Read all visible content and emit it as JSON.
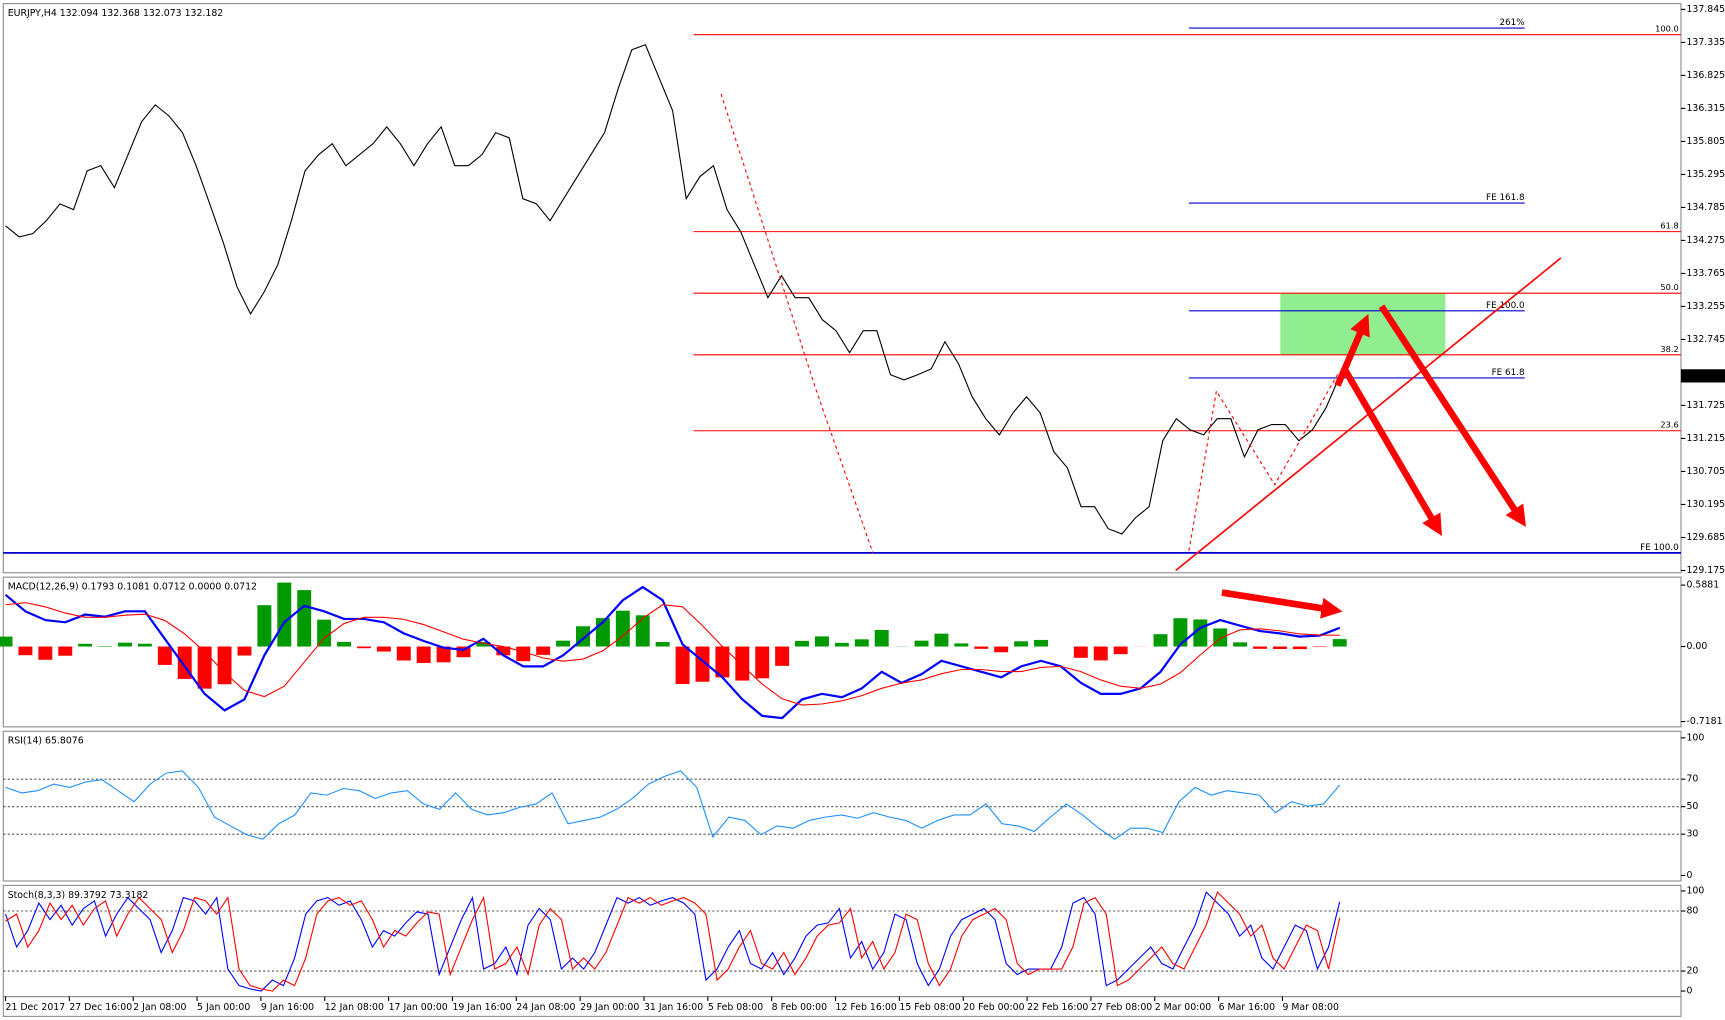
{
  "chart_data": [
    {
      "type": "line",
      "title": "EURJPY,H4  132.094 132.368 132.073 132.182",
      "color": "#000000",
      "values": [
        134.5,
        134.33,
        134.38,
        134.58,
        134.84,
        134.75,
        135.35,
        135.43,
        135.09,
        135.6,
        136.11,
        136.37,
        136.2,
        135.94,
        135.43,
        134.84,
        134.24,
        133.56,
        133.14,
        133.48,
        133.9,
        134.58,
        135.35,
        135.6,
        135.77,
        135.43,
        135.6,
        135.77,
        136.03,
        135.77,
        135.43,
        135.77,
        136.03,
        135.43,
        135.43,
        135.6,
        135.94,
        135.86,
        134.92,
        134.84,
        134.58,
        134.92,
        135.26,
        135.6,
        135.94,
        136.62,
        137.22,
        137.3,
        136.79,
        136.28,
        134.92,
        135.26,
        135.43,
        134.75,
        134.41,
        133.9,
        133.39,
        133.73,
        133.39,
        133.39,
        133.05,
        132.88,
        132.54,
        132.88,
        132.88,
        132.2,
        132.12,
        132.2,
        132.29,
        132.71,
        132.37,
        131.86,
        131.52,
        131.27,
        131.61,
        131.86,
        131.61,
        131.01,
        130.76,
        130.16,
        130.16,
        129.82,
        129.74,
        129.99,
        130.16,
        131.18,
        131.52,
        131.35,
        131.27,
        131.52,
        131.52,
        130.93,
        131.35,
        131.43,
        131.43,
        131.18,
        131.35,
        131.69,
        132.182
      ],
      "ylim": [
        129.14,
        137.9
      ],
      "yticks": [
        137.845,
        137.335,
        136.825,
        136.315,
        135.805,
        135.295,
        134.785,
        134.275,
        133.765,
        133.255,
        132.745,
        131.725,
        131.215,
        130.705,
        130.195,
        129.685,
        129.175
      ],
      "last_price": 132.182,
      "retracement_levels": [
        {
          "label": "100.0",
          "value": 137.454
        },
        {
          "label": "61.8",
          "value": 134.411
        },
        {
          "label": "50.0",
          "value": 133.459
        },
        {
          "label": "38.2",
          "value": 132.507
        },
        {
          "label": "23.6",
          "value": 131.334
        }
      ],
      "extension_levels": [
        {
          "label": "261%",
          "value": 137.556
        },
        {
          "label": "FE 161.8",
          "value": 134.853
        },
        {
          "label": "FE 100.0",
          "value": 133.187
        },
        {
          "label": "FE 61.8",
          "value": 132.15
        }
      ],
      "support_line": {
        "label": "FE 100.0",
        "value": 129.447
      },
      "zone": [
        132.507,
        133.459
      ],
      "zone_color": "#90ee90"
    },
    {
      "type": "macd",
      "title": "MACD(12,26,9) 0.1793 0.1081 0.0712 0.0000 0.0712",
      "series": [
        {
          "color": "#0000ff",
          "values": [
            0.495,
            0.337,
            0.253,
            0.232,
            0.306,
            0.285,
            0.337,
            0.337,
            0.074,
            -0.19,
            -0.453,
            -0.611,
            -0.506,
            -0.084,
            0.232,
            0.39,
            0.337,
            0.264,
            0.264,
            0.232,
            0.126,
            0.053,
            -0.011,
            -0.032,
            0.074,
            -0.084,
            -0.19,
            -0.19,
            -0.084,
            0.074,
            0.232,
            0.443,
            0.569,
            0.443,
            0.021,
            -0.137,
            -0.295,
            -0.506,
            -0.664,
            -0.685,
            -0.506,
            -0.453,
            -0.485,
            -0.401,
            -0.242,
            -0.348,
            -0.264,
            -0.137,
            -0.19,
            -0.242,
            -0.295,
            -0.19,
            -0.137,
            -0.19,
            -0.348,
            -0.453,
            -0.453,
            -0.401,
            -0.242,
            0.021,
            0.179,
            0.253,
            0.2,
            0.148,
            0.126,
            0.095,
            0.105,
            0.179
          ]
        },
        {
          "color": "#ff0000",
          "values": [
            0.4,
            0.42,
            0.38,
            0.32,
            0.28,
            0.28,
            0.3,
            0.31,
            0.25,
            0.12,
            -0.05,
            -0.25,
            -0.42,
            -0.48,
            -0.38,
            -0.15,
            0.08,
            0.22,
            0.28,
            0.28,
            0.26,
            0.21,
            0.14,
            0.07,
            0.03,
            0,
            -0.05,
            -0.11,
            -0.14,
            -0.12,
            -0.04,
            0.1,
            0.27,
            0.4,
            0.38,
            0.2,
            0,
            -0.18,
            -0.36,
            -0.5,
            -0.56,
            -0.55,
            -0.52,
            -0.47,
            -0.4,
            -0.35,
            -0.32,
            -0.26,
            -0.22,
            -0.22,
            -0.24,
            -0.24,
            -0.2,
            -0.19,
            -0.24,
            -0.32,
            -0.38,
            -0.4,
            -0.36,
            -0.25,
            -0.08,
            0.08,
            0.16,
            0.17,
            0.15,
            0.12,
            0.11,
            0.108
          ]
        }
      ],
      "histogram": [
        0.095,
        -0.083,
        -0.127,
        -0.088,
        0.026,
        0.005,
        0.037,
        0.027,
        -0.176,
        -0.31,
        -0.403,
        -0.361,
        -0.086,
        0.396,
        0.612,
        0.54,
        0.257,
        0.044,
        -0.016,
        -0.048,
        -0.134,
        -0.157,
        -0.151,
        -0.102,
        0.044,
        -0.084,
        -0.14,
        -0.08,
        0.056,
        0.194,
        0.272,
        0.343,
        0.299,
        0.043,
        -0.359,
        -0.337,
        -0.295,
        -0.326,
        -0.304,
        -0.185,
        0.054,
        0.097,
        0.035,
        0.069,
        0.158,
        0.002,
        0.056,
        0.123,
        0.03,
        -0.022,
        -0.055,
        0.05,
        0.063,
        0,
        -0.108,
        -0.133,
        -0.073,
        -0.001,
        0.118,
        0.271,
        0.259,
        0.173,
        0.04,
        -0.022,
        -0.024,
        -0.025,
        -0.005,
        0.071
      ],
      "up_color": "#009900",
      "down_color": "#ff0000",
      "ylim": [
        -0.769,
        0.643
      ],
      "yticks": [
        0.5881,
        {
          "value": 0,
          "label": "0.00"
        },
        -0.7181
      ]
    },
    {
      "type": "line",
      "title": "RSI(14) 65.8076",
      "series": [
        {
          "color": "#1e90ff",
          "values": [
            64,
            60,
            61.6,
            66.4,
            64,
            68,
            69.6,
            61.6,
            53.6,
            66.4,
            74.4,
            76,
            64,
            42.4,
            36,
            29.6,
            26.4,
            37.6,
            44,
            60,
            58.4,
            63.2,
            61.6,
            56,
            60,
            61.6,
            52,
            48,
            60,
            48,
            44,
            45.6,
            49.6,
            52,
            60,
            37.6,
            40,
            42.4,
            48,
            56,
            66.4,
            72,
            76,
            64,
            28,
            42.4,
            40,
            29.6,
            36,
            34.4,
            40,
            42.4,
            44,
            41.6,
            45.6,
            42.4,
            40,
            34.4,
            40,
            44,
            44,
            52,
            37.6,
            36,
            32,
            42.4,
            52,
            44,
            34.4,
            26.4,
            34.4,
            34.4,
            31.2,
            53.6,
            64,
            58.4,
            61.6,
            60,
            58.4,
            45.6,
            53.6,
            50.4,
            52,
            65.8
          ]
        }
      ],
      "levels": [
        70,
        50,
        30
      ],
      "ylim": [
        -4,
        103.2
      ],
      "yticks": [
        100,
        70,
        50,
        30,
        0
      ]
    },
    {
      "type": "line",
      "title": "Stoch(8,3,3) 89.3792 73.3182",
      "series": [
        {
          "color": "#0000ff",
          "values": [
            76.9,
            44,
            60.4,
            87.9,
            71.4,
            85.7,
            65.9,
            82.4,
            90.1,
            54.9,
            76.9,
            93.4,
            82.4,
            71.4,
            38.5,
            60.4,
            93.4,
            90.1,
            76.9,
            93.4,
            22,
            5.5,
            2.2,
            0,
            11,
            5.5,
            33,
            76.9,
            90.1,
            93.4,
            85.7,
            90.1,
            71.4,
            44,
            60.4,
            54.9,
            68.1,
            79.1,
            76.9,
            16.5,
            44,
            71.4,
            93.4,
            22,
            27.5,
            44,
            16.5,
            65.9,
            82.4,
            71.4,
            22,
            33,
            22,
            38.5,
            65.9,
            93.4,
            87.9,
            93.4,
            85.7,
            90.1,
            93.4,
            87.9,
            76.9,
            11,
            22,
            44,
            60.4,
            27.5,
            22,
            38.5,
            16.5,
            33,
            54.9,
            65.9,
            68.1,
            82.4,
            33,
            49.5,
            22,
            38.5,
            76.9,
            71.4,
            27.5,
            5.5,
            22,
            54.9,
            71.4,
            76.9,
            82.4,
            71.4,
            27.5,
            16.5,
            22,
            22,
            22,
            44,
            87.9,
            93.4,
            76.9,
            5.5,
            11,
            22,
            33,
            44,
            27.5,
            22,
            44,
            65.9,
            98.9,
            87.9,
            76.9,
            54.9,
            65.9,
            33,
            22,
            44,
            65.9,
            60.4,
            22,
            44,
            89.38
          ]
        },
        {
          "color": "#ff0000",
          "values": [
            70,
            76.9,
            44,
            60.4,
            87.9,
            71.4,
            85.7,
            65.9,
            82.4,
            90.1,
            54.9,
            76.9,
            93.4,
            82.4,
            71.4,
            38.5,
            60.4,
            93.4,
            90.1,
            76.9,
            93.4,
            22,
            5.5,
            2.2,
            0,
            11,
            5.5,
            33,
            76.9,
            90.1,
            93.4,
            85.7,
            90.1,
            71.4,
            44,
            60.4,
            54.9,
            68.1,
            79.1,
            76.9,
            16.5,
            44,
            71.4,
            93.4,
            22,
            27.5,
            44,
            16.5,
            65.9,
            82.4,
            71.4,
            22,
            33,
            22,
            38.5,
            65.9,
            93.4,
            87.9,
            93.4,
            85.7,
            90.1,
            93.4,
            87.9,
            76.9,
            11,
            22,
            44,
            60.4,
            27.5,
            22,
            38.5,
            16.5,
            33,
            54.9,
            65.9,
            68.1,
            82.4,
            33,
            49.5,
            22,
            38.5,
            76.9,
            71.4,
            27.5,
            5.5,
            22,
            54.9,
            71.4,
            76.9,
            82.4,
            71.4,
            27.5,
            16.5,
            22,
            22,
            22,
            44,
            87.9,
            93.4,
            76.9,
            5.5,
            11,
            22,
            33,
            44,
            27.5,
            22,
            44,
            65.9,
            98.9,
            87.9,
            76.9,
            54.9,
            65.9,
            33,
            22,
            44,
            65.9,
            60.4,
            22,
            73.32
          ]
        }
      ],
      "levels": [
        80,
        20
      ],
      "ylim": [
        -5.5,
        103.4
      ],
      "yticks": [
        100,
        80,
        20,
        0
      ]
    }
  ],
  "date_labels": [
    "21 Dec 2017",
    "27 Dec 16:00",
    "2 Jan 08:00",
    "5 Jan 00:00",
    "9 Jan 16:00",
    "12 Jan 08:00",
    "17 Jan 00:00",
    "19 Jan 16:00",
    "24 Jan 08:00",
    "29 Jan 00:00",
    "31 Jan 16:00",
    "5 Feb 08:00",
    "8 Feb 00:00",
    "12 Feb 16:00",
    "15 Feb 08:00",
    "20 Feb 00:00",
    "22 Feb 16:00",
    "27 Feb 08:00",
    "2 Mar 00:00",
    "6 Mar 16:00",
    "9 Mar 08:00"
  ]
}
